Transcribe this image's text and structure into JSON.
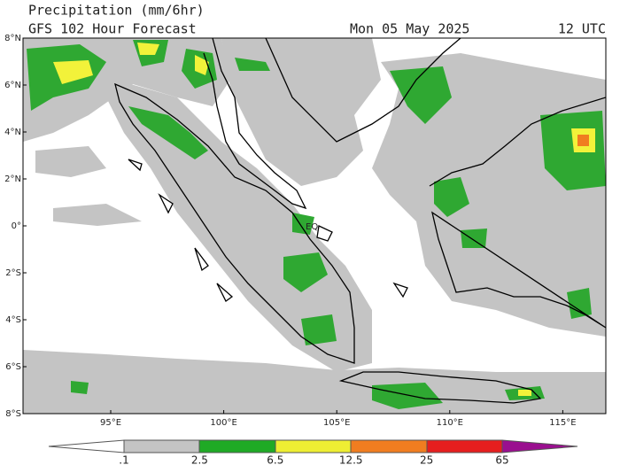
{
  "header": {
    "title": "Precipitation (mm/6hr)",
    "subtitle": "GFS 102 Hour Forecast",
    "date": "Mon 05 May 2025",
    "time": "12 UTC"
  },
  "map": {
    "lat_labels": [
      "8°N",
      "6°N",
      "4°N",
      "2°N",
      "0°",
      "2°S",
      "4°S",
      "6°S",
      "8°S"
    ],
    "lon_labels": [
      "95°E",
      "100°E",
      "105°E",
      "110°E",
      "115°E"
    ],
    "eq_label": "EQ"
  },
  "legend": {
    "labels": [
      ".1",
      "2.5",
      "6.5",
      "12.5",
      "25",
      "65"
    ]
  }
}
